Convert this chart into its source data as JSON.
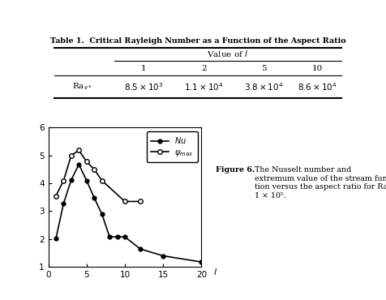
{
  "table_title": "Table 1.  Critical Rayleigh Number as a Function of the Aspect Ratio",
  "nu_x": [
    1,
    2,
    3,
    4,
    5,
    6,
    7,
    8,
    9,
    10,
    12,
    15,
    20
  ],
  "nu_y": [
    2.02,
    3.28,
    4.12,
    4.68,
    4.1,
    3.48,
    2.9,
    2.08,
    2.08,
    2.08,
    1.65,
    1.4,
    1.18
  ],
  "psi_x": [
    1,
    2,
    3,
    4,
    5,
    6,
    7,
    10,
    12
  ],
  "psi_y": [
    3.55,
    4.1,
    5.0,
    5.18,
    4.78,
    4.5,
    4.1,
    3.35,
    3.35
  ],
  "xlim": [
    0,
    20
  ],
  "ylim": [
    1,
    6
  ],
  "yticks": [
    1,
    2,
    3,
    4,
    5,
    6
  ],
  "xticks": [
    0,
    5,
    10,
    15,
    20
  ],
  "figure_caption_bold": "Figure 6.",
  "figure_caption_rest": " The Nusselt number and\nextremum value of the stream func-\ntion versus the aspect ratio for Ra =\n1 × 10⁵.",
  "bg_color": "#ffffff",
  "line_color": "black"
}
